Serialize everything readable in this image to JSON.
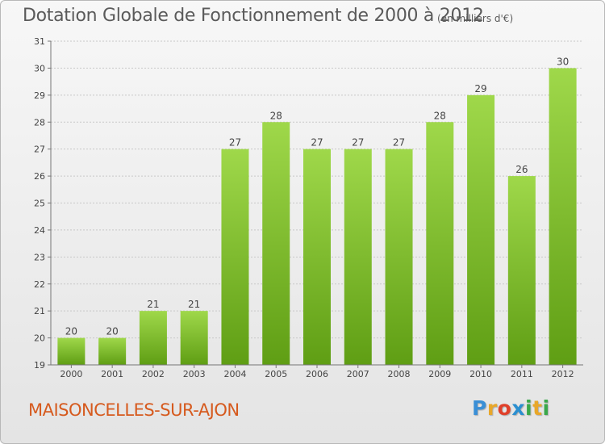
{
  "header": {
    "title": "Dotation Globale de Fonctionnement de 2000 à 2012",
    "subtitle": "(en milliers d'€)"
  },
  "footer": {
    "commune": "MAISONCELLES-SUR-AJON",
    "logo_letters": [
      "P",
      "r",
      "o",
      "x",
      "i",
      "t",
      "i"
    ],
    "logo_colors": [
      "#3a8fd6",
      "#e8a72a",
      "#e0402a",
      "#2a8fd0",
      "#3aa84a",
      "#e8a72a",
      "#3aa84a"
    ]
  },
  "chart_data": {
    "type": "bar",
    "categories": [
      "2000",
      "2001",
      "2002",
      "2003",
      "2004",
      "2005",
      "2006",
      "2007",
      "2008",
      "2009",
      "2010",
      "2011",
      "2012"
    ],
    "values": [
      20,
      20,
      21,
      21,
      27,
      28,
      27,
      27,
      27,
      28,
      29,
      26,
      30
    ],
    "ylim": [
      19,
      31
    ],
    "yticks": [
      19,
      20,
      21,
      22,
      23,
      24,
      25,
      26,
      27,
      28,
      29,
      30,
      31
    ],
    "grid": true,
    "bar_color_top": "#9fd84a",
    "bar_color_bottom": "#5f9e14",
    "grid_color": "#c8c8c8",
    "text_color": "#444444"
  }
}
